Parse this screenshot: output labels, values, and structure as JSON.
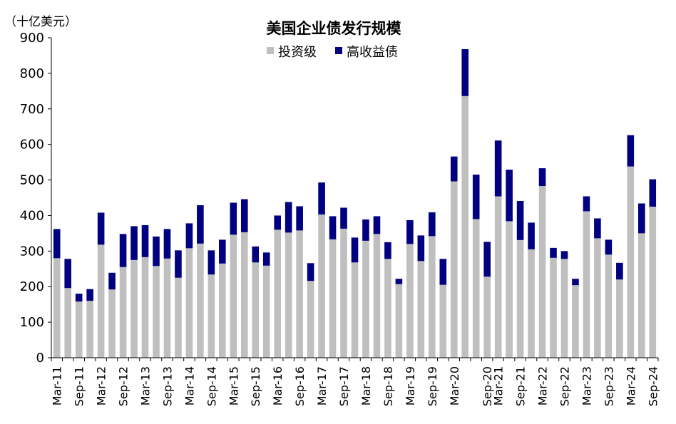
{
  "chart_data": {
    "type": "bar",
    "stacked": true,
    "title": "美国企业债发行规模",
    "unit_label": "（十亿美元）",
    "ylim": [
      0,
      900
    ],
    "yticks": [
      0,
      100,
      200,
      300,
      400,
      500,
      600,
      700,
      800,
      900
    ],
    "legend_position": "top-center",
    "colors": {
      "investment_grade": "#bfbfbf",
      "high_yield": "#000080"
    },
    "series": [
      {
        "name": "投资级",
        "values": [
          280,
          196,
          158,
          160,
          318,
          192,
          255,
          275,
          283,
          258,
          279,
          225,
          308,
          321,
          234,
          265,
          346,
          353,
          268,
          259,
          360,
          352,
          358,
          216,
          403,
          333,
          363,
          268,
          329,
          348,
          278,
          207,
          320,
          272,
          342,
          205,
          496,
          736,
          390,
          228,
          454,
          384,
          331,
          305,
          483,
          281,
          278,
          204,
          412,
          336,
          290,
          220,
          538,
          350,
          425
        ]
      },
      {
        "name": "高收益债",
        "values": [
          82,
          82,
          22,
          33,
          90,
          47,
          93,
          95,
          90,
          83,
          83,
          77,
          70,
          108,
          68,
          67,
          90,
          93,
          45,
          37,
          40,
          86,
          68,
          50,
          90,
          65,
          59,
          70,
          60,
          50,
          47,
          15,
          67,
          72,
          67,
          73,
          70,
          132,
          125,
          98,
          157,
          145,
          110,
          75,
          50,
          28,
          22,
          18,
          42,
          56,
          42,
          47,
          88,
          84,
          77
        ]
      }
    ],
    "x_tick_labels": [
      "Mar-11",
      "Sep-11",
      "Mar-12",
      "Sep-12",
      "Mar-13",
      "Sep-13",
      "Mar-14",
      "Sep-14",
      "Mar-15",
      "Sep-15",
      "Mar-16",
      "Sep-16",
      "Mar-17",
      "Sep-17",
      "Mar-18",
      "Sep-18",
      "Mar-19",
      "Sep-19",
      "Mar-20",
      "Sep-20",
      "Mar-21",
      "Sep-21",
      "Mar-22",
      "Sep-22",
      "Mar-23",
      "Sep-23",
      "Mar-24",
      "Sep-24"
    ],
    "x_tick_indices": [
      0,
      2,
      4,
      6,
      8,
      10,
      12,
      14,
      16,
      18,
      20,
      22,
      24,
      26,
      28,
      30,
      32,
      34,
      36,
      39,
      40,
      42,
      44,
      46,
      48,
      50,
      52,
      54
    ]
  }
}
